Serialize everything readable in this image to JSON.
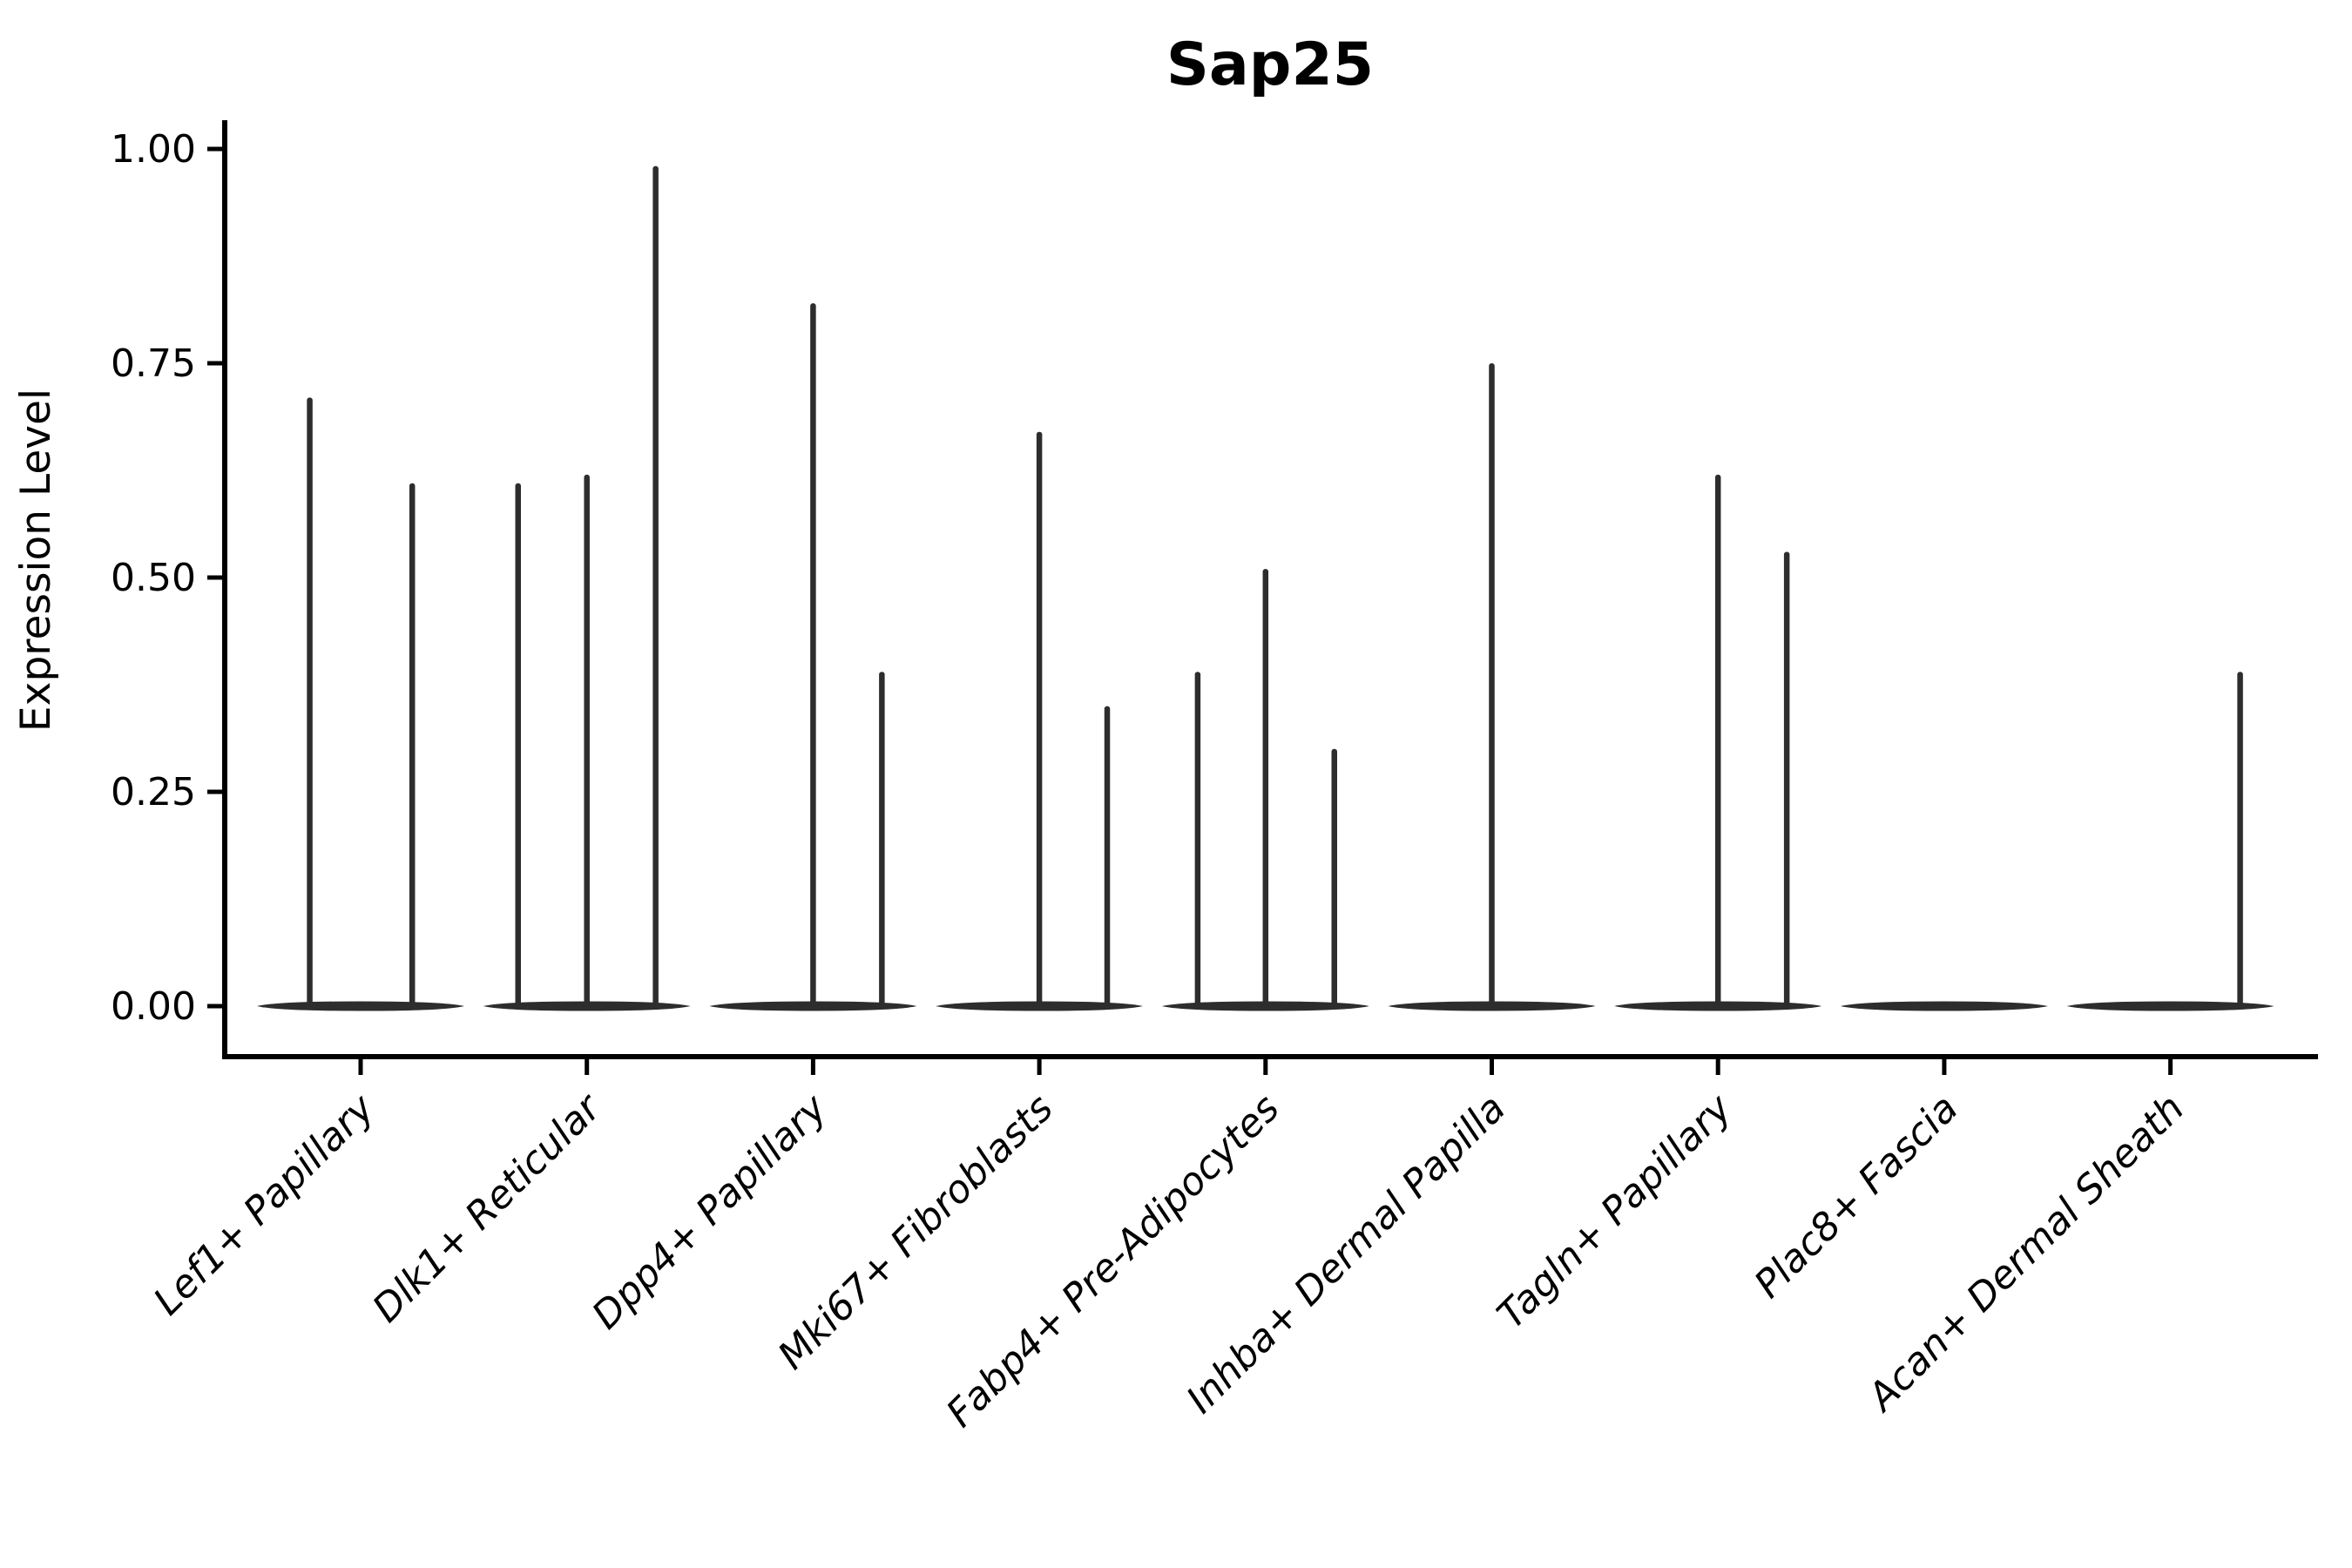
{
  "colors": {
    "ink": "#000000",
    "violin": "#2d2d2d",
    "background": "#ffffff"
  },
  "chart_data": {
    "type": "violin",
    "title": "Sap25",
    "xlabel": "",
    "ylabel": "Expression Level",
    "ylim": [
      0.0,
      1.0
    ],
    "yticks": [
      1.0,
      0.75,
      0.5,
      0.25,
      0.0
    ],
    "ytick_labels": [
      "1.00",
      "0.75",
      "0.50",
      "0.25",
      "0.00"
    ],
    "grid": false,
    "legend": "none",
    "description": "Violin plot of Sap25 expression; each cell-type violin is flat at 0 with thin spikes marking the few cells with nonzero expression.",
    "categories": [
      "Lef1+ Papillary",
      "Dlk1+ Reticular",
      "Dpp4+ Papillary",
      "Mki67+ Fibroblasts",
      "Fabp4+ Pre-Adipocytes",
      "Inhba+ Dermal Papilla",
      "Tagln+ Papillary",
      "Plac8+ Fascia",
      "Acan+ Dermal Sheath"
    ],
    "series": [
      {
        "name": "Lef1+ Papillary",
        "spikes": [
          {
            "offset": -0.225,
            "value": 0.71
          },
          {
            "offset": 0.228,
            "value": 0.61
          }
        ]
      },
      {
        "name": "Dlk1+ Reticular",
        "spikes": [
          {
            "offset": -0.304,
            "value": 0.61
          },
          {
            "offset": 0.0,
            "value": 0.62
          },
          {
            "offset": 0.304,
            "value": 0.98
          }
        ]
      },
      {
        "name": "Dpp4+ Papillary",
        "spikes": [
          {
            "offset": 0.0,
            "value": 0.82
          },
          {
            "offset": 0.304,
            "value": 0.39
          }
        ]
      },
      {
        "name": "Mki67+ Fibroblasts",
        "spikes": [
          {
            "offset": 0.0,
            "value": 0.67
          },
          {
            "offset": 0.3,
            "value": 0.35
          }
        ]
      },
      {
        "name": "Fabp4+ Pre-Adipocytes",
        "spikes": [
          {
            "offset": -0.3,
            "value": 0.39
          },
          {
            "offset": 0.0,
            "value": 0.51
          },
          {
            "offset": 0.304,
            "value": 0.3
          }
        ]
      },
      {
        "name": "Inhba+ Dermal Papilla",
        "spikes": [
          {
            "offset": 0.0,
            "value": 0.75
          }
        ]
      },
      {
        "name": "Tagln+ Papillary",
        "spikes": [
          {
            "offset": 0.0,
            "value": 0.62
          },
          {
            "offset": 0.304,
            "value": 0.53
          }
        ]
      },
      {
        "name": "Plac8+ Fascia",
        "spikes": []
      },
      {
        "name": "Acan+ Dermal Sheath",
        "spikes": [
          {
            "offset": 0.308,
            "value": 0.39
          }
        ]
      }
    ]
  }
}
